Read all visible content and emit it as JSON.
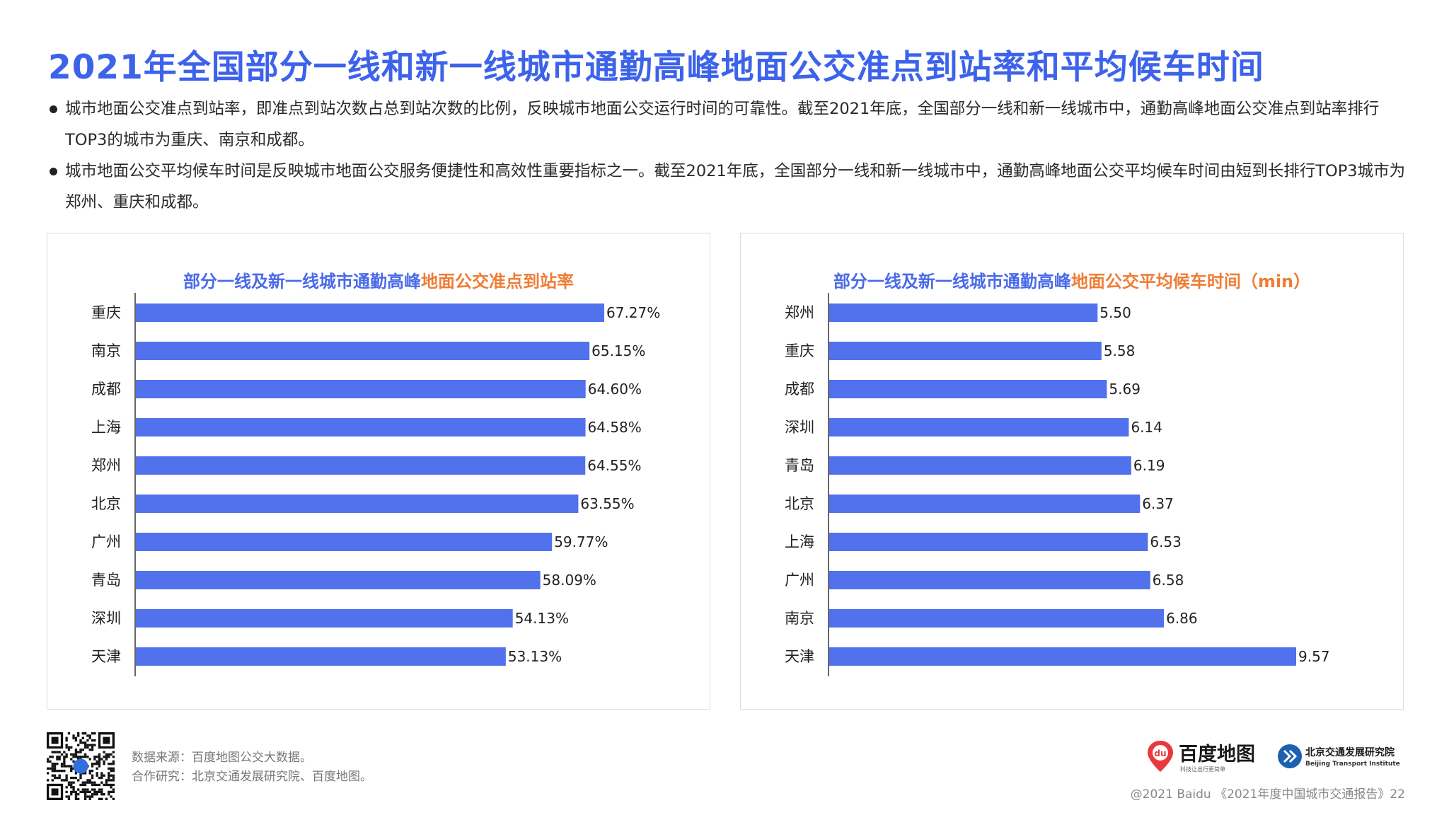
{
  "title": "2021年全国部分一线和新一线城市通勤高峰地面公交准点到站率和平均候车时间",
  "bullets": [
    "城市地面公交准点到站率，即准点到站次数占总到站次数的比例，反映城市地面公交运行时间的可靠性。截至2021年底，全国部分一线和新一线城市中，通勤高峰地面公交准点到站率排行TOP3的城市为重庆、南京和成都。",
    "城市地面公交平均候车时间是反映城市地面公交服务便捷性和高效性重要指标之一。截至2021年底，全国部分一线和新一线城市中，通勤高峰地面公交平均候车时间由短到长排行TOP3城市为郑州、重庆和成都。"
  ],
  "chart_data": [
    {
      "type": "bar",
      "orientation": "horizontal",
      "title_part1": "部分一线及新一线城市通勤高峰",
      "title_part2": "地面公交准点到站率",
      "categories": [
        "重庆",
        "南京",
        "成都",
        "上海",
        "郑州",
        "北京",
        "广州",
        "青岛",
        "深圳",
        "天津"
      ],
      "values": [
        67.27,
        65.15,
        64.6,
        64.58,
        64.55,
        63.55,
        59.77,
        58.09,
        54.13,
        53.13
      ],
      "value_labels": [
        "67.27%",
        "65.15%",
        "64.60%",
        "64.58%",
        "64.55%",
        "63.55%",
        "59.77%",
        "58.09%",
        "54.13%",
        "53.13%"
      ],
      "xlim": [
        0,
        100
      ],
      "bar_color": "#5271ed",
      "grid": false
    },
    {
      "type": "bar",
      "orientation": "horizontal",
      "title_part1": "部分一线及新一线城市通勤高峰",
      "title_part2": "地面公交平均候车时间（min）",
      "categories": [
        "郑州",
        "重庆",
        "成都",
        "深圳",
        "青岛",
        "北京",
        "上海",
        "广州",
        "南京",
        "天津"
      ],
      "values": [
        5.5,
        5.58,
        5.69,
        6.14,
        6.19,
        6.37,
        6.53,
        6.58,
        6.86,
        9.57
      ],
      "value_labels": [
        "5.50",
        "5.58",
        "5.69",
        "6.14",
        "6.19",
        "6.37",
        "6.53",
        "6.58",
        "6.86",
        "9.57"
      ],
      "xlim": [
        0,
        12
      ],
      "bar_color": "#5271ed",
      "grid": false
    }
  ],
  "footer": {
    "source": "数据来源：百度地图公交大数据。",
    "partner": "合作研究：北京交通发展研究院、百度地图。",
    "copyright": "@2021 Baidu 《2021年度中国城市交通报告》22"
  },
  "logos": {
    "baidu_name": "百度地图",
    "baidu_slogan": "科技让出行更简单",
    "baidu_mark": "du",
    "bti_name": "北京交通发展研究院",
    "bti_en": "Beijing Transport Institute"
  },
  "colors": {
    "title": "#3d63ea",
    "bar": "#5271ed",
    "accent_orange": "#ee7d37"
  }
}
